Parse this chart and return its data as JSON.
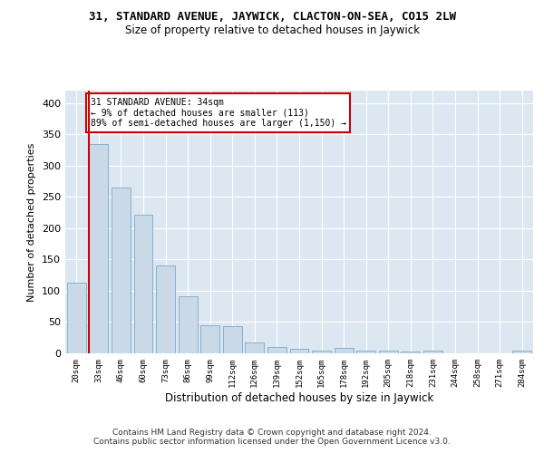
{
  "title": "31, STANDARD AVENUE, JAYWICK, CLACTON-ON-SEA, CO15 2LW",
  "subtitle": "Size of property relative to detached houses in Jaywick",
  "xlabel": "Distribution of detached houses by size in Jaywick",
  "ylabel": "Number of detached properties",
  "property_label": "31 STANDARD AVENUE: 34sqm",
  "annotation_line1": "← 9% of detached houses are smaller (113)",
  "annotation_line2": "89% of semi-detached houses are larger (1,150) →",
  "bar_color": "#c9d9e8",
  "bar_edge_color": "#7aaac8",
  "marker_color": "#cc0000",
  "annotation_box_color": "#cc0000",
  "background_color": "#dde7f2",
  "categories": [
    "20sqm",
    "33sqm",
    "46sqm",
    "60sqm",
    "73sqm",
    "86sqm",
    "99sqm",
    "112sqm",
    "126sqm",
    "139sqm",
    "152sqm",
    "165sqm",
    "178sqm",
    "192sqm",
    "205sqm",
    "218sqm",
    "231sqm",
    "244sqm",
    "258sqm",
    "271sqm",
    "284sqm"
  ],
  "values": [
    113,
    335,
    265,
    221,
    140,
    91,
    45,
    44,
    18,
    10,
    7,
    5,
    9,
    4,
    5,
    3,
    5,
    0,
    0,
    0,
    5
  ],
  "ylim": [
    0,
    420
  ],
  "yticks": [
    0,
    50,
    100,
    150,
    200,
    250,
    300,
    350,
    400
  ],
  "footer_line1": "Contains HM Land Registry data © Crown copyright and database right 2024.",
  "footer_line2": "Contains public sector information licensed under the Open Government Licence v3.0."
}
